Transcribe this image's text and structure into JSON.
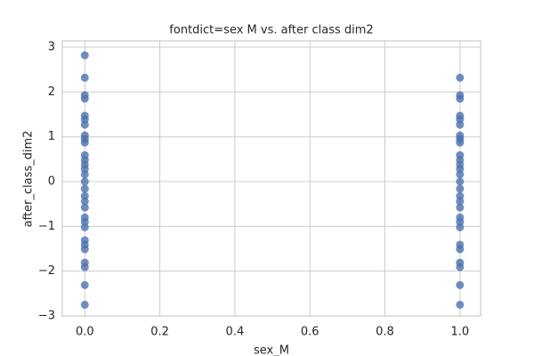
{
  "chart_data": {
    "type": "scatter",
    "title": "fontdict=sex M vs. after class dim2",
    "x_label": "sex_M",
    "y_label": "after_class_dim2",
    "color": "#4c72b0",
    "grid": true,
    "xlim": [
      -0.06,
      1.055
    ],
    "ylim": [
      -3,
      3.14
    ],
    "xticks": [
      {
        "value": 0,
        "label": "0.0"
      },
      0.2,
      0.4,
      0.6,
      0.8,
      {
        "value": 1,
        "label": "1.0"
      }
    ],
    "yticks": [
      {
        "value": -3,
        "label": "−3"
      },
      {
        "value": -2,
        "label": "−2"
      },
      {
        "value": -1,
        "label": "−1"
      },
      0,
      1,
      2,
      3
    ],
    "x": [
      0,
      0,
      0,
      0,
      0,
      0,
      0,
      0,
      0,
      0,
      0,
      0,
      0,
      0,
      0,
      0,
      0,
      0,
      0,
      0,
      0,
      0,
      0,
      0,
      0,
      0,
      0,
      0,
      0,
      0,
      1,
      1,
      1,
      1,
      1,
      1,
      1,
      1,
      1,
      1,
      1,
      1,
      1,
      1,
      1,
      1,
      1,
      1,
      1,
      1,
      1,
      1,
      1,
      1,
      1,
      1,
      1,
      1
    ],
    "values": [
      2.82,
      2.32,
      1.93,
      1.85,
      1.47,
      1.39,
      1.27,
      1.03,
      0.95,
      0.87,
      0.59,
      0.48,
      0.38,
      0.28,
      0.16,
      0.0,
      -0.16,
      -0.32,
      -0.44,
      -0.58,
      -0.8,
      -0.9,
      -1.02,
      -1.31,
      -1.41,
      -1.51,
      -1.81,
      -1.91,
      -2.31,
      -2.75,
      2.32,
      1.93,
      1.85,
      1.47,
      1.39,
      1.27,
      1.03,
      0.95,
      0.87,
      0.59,
      0.48,
      0.38,
      0.28,
      0.16,
      0.0,
      -0.16,
      -0.32,
      -0.44,
      -0.58,
      -0.8,
      -0.9,
      -1.02,
      -1.41,
      -1.51,
      -1.81,
      -1.91,
      -2.31,
      -2.75
    ]
  }
}
